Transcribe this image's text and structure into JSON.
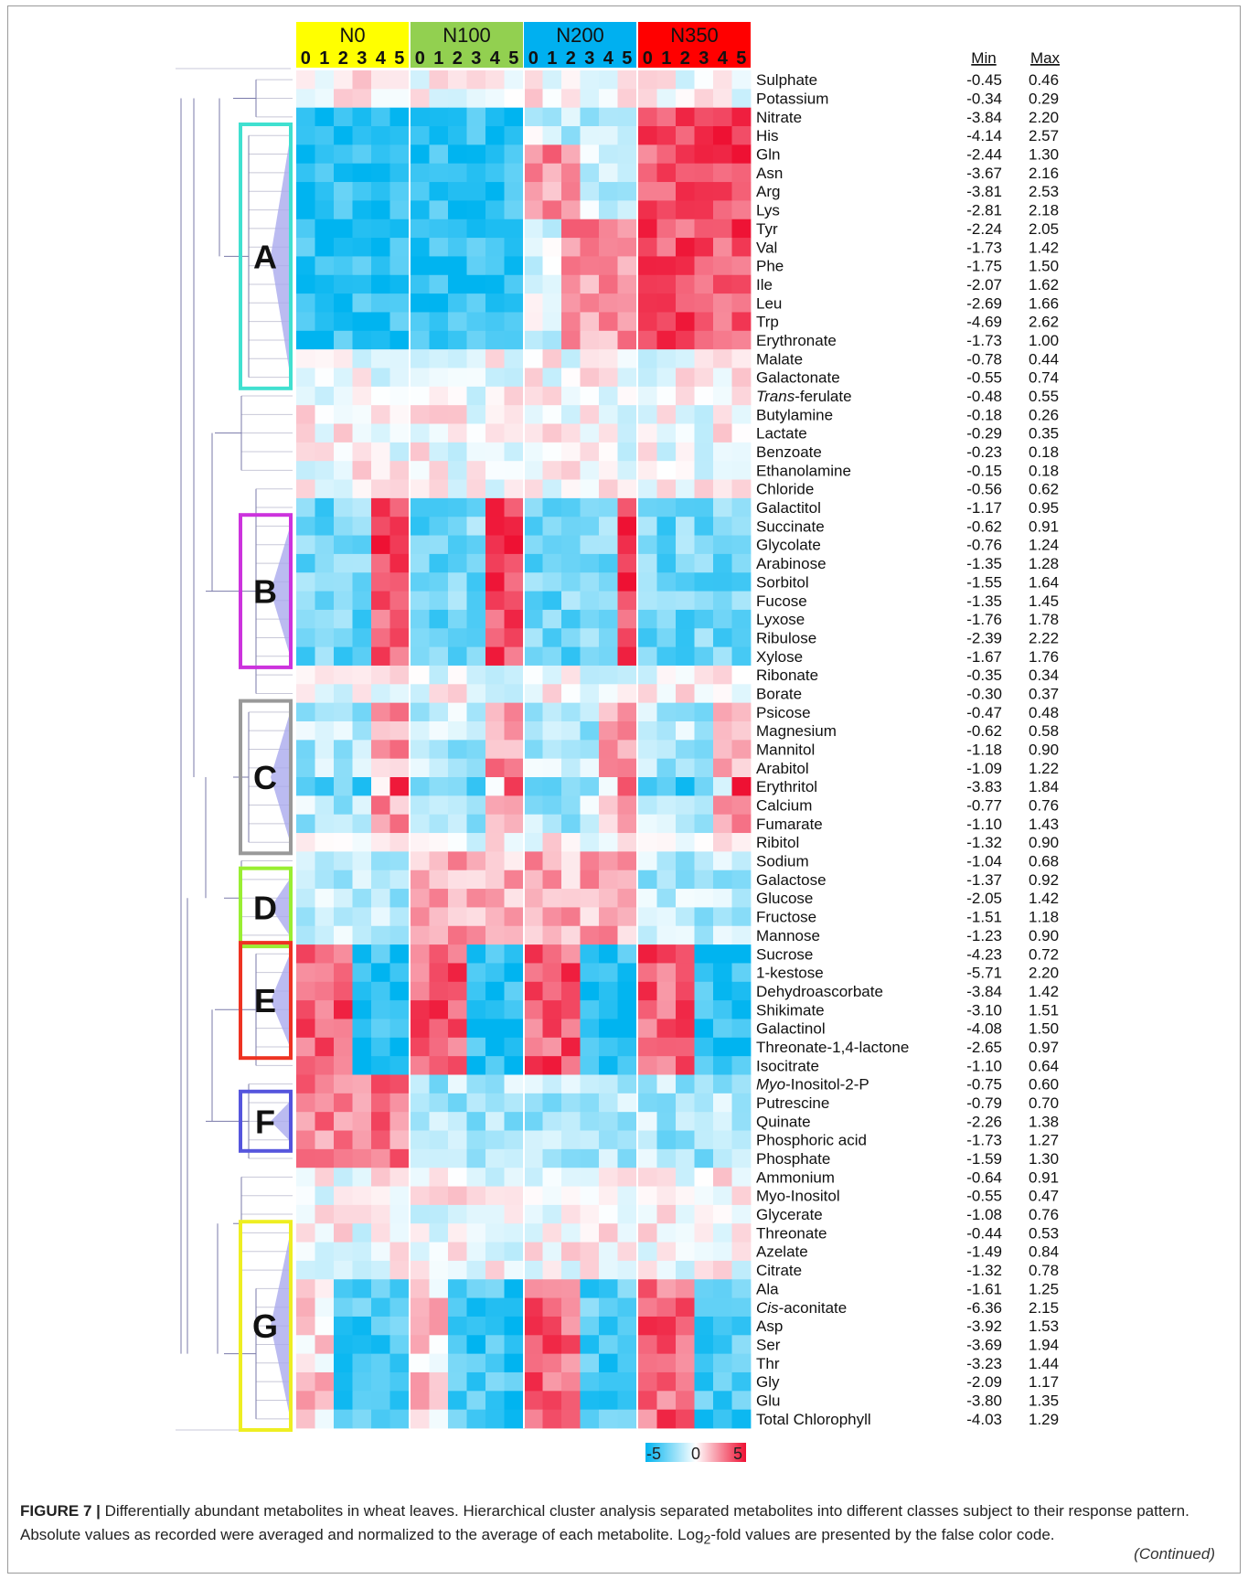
{
  "chart_data": {
    "type": "heatmap",
    "groups": [
      {
        "label": "N0",
        "color": "#ffff00"
      },
      {
        "label": "N100",
        "color": "#92d050"
      },
      {
        "label": "N200",
        "color": "#00b0f0"
      },
      {
        "label": "N350",
        "color": "#ff0000"
      }
    ],
    "timepoints": [
      "0",
      "1",
      "2",
      "3",
      "4",
      "5"
    ],
    "stats_headers": {
      "min": "Min",
      "max": "Max"
    },
    "metabolites": [
      {
        "name": "Sulphate",
        "min": "-0.45",
        "max": "0.46"
      },
      {
        "name": "Potassium",
        "min": "-0.34",
        "max": "0.29"
      },
      {
        "name": "Nitrate",
        "min": "-3.84",
        "max": "2.20"
      },
      {
        "name": "His",
        "min": "-4.14",
        "max": "2.57"
      },
      {
        "name": "Gln",
        "min": "-2.44",
        "max": "1.30"
      },
      {
        "name": "Asn",
        "min": "-3.67",
        "max": "2.16"
      },
      {
        "name": "Arg",
        "min": "-3.81",
        "max": "2.53"
      },
      {
        "name": "Lys",
        "min": "-2.81",
        "max": "2.18"
      },
      {
        "name": "Tyr",
        "min": "-2.24",
        "max": "2.05"
      },
      {
        "name": "Val",
        "min": "-1.73",
        "max": "1.42"
      },
      {
        "name": "Phe",
        "min": "-1.75",
        "max": "1.50"
      },
      {
        "name": "Ile",
        "min": "-2.07",
        "max": "1.62"
      },
      {
        "name": "Leu",
        "min": "-2.69",
        "max": "1.66"
      },
      {
        "name": "Trp",
        "min": "-4.69",
        "max": "2.62"
      },
      {
        "name": "Erythronate",
        "min": "-1.73",
        "max": "1.00"
      },
      {
        "name": "Malate",
        "min": "-0.78",
        "max": "0.44"
      },
      {
        "name": "Galactonate",
        "min": "-0.55",
        "max": "0.74"
      },
      {
        "name": "Trans-ferulate",
        "min": "-0.48",
        "max": "0.55",
        "italic": "Trans",
        "rest": "-ferulate"
      },
      {
        "name": "Butylamine",
        "min": "-0.18",
        "max": "0.26"
      },
      {
        "name": "Lactate",
        "min": "-0.29",
        "max": "0.35"
      },
      {
        "name": "Benzoate",
        "min": "-0.23",
        "max": "0.18"
      },
      {
        "name": "Ethanolamine",
        "min": "-0.15",
        "max": "0.18"
      },
      {
        "name": "Chloride",
        "min": "-0.56",
        "max": "0.62"
      },
      {
        "name": "Galactitol",
        "min": "-1.17",
        "max": "0.95"
      },
      {
        "name": "Succinate",
        "min": "-0.62",
        "max": "0.91"
      },
      {
        "name": "Glycolate",
        "min": "-0.76",
        "max": "1.24"
      },
      {
        "name": "Arabinose",
        "min": "-1.35",
        "max": "1.28"
      },
      {
        "name": "Sorbitol",
        "min": "-1.55",
        "max": "1.64"
      },
      {
        "name": "Fucose",
        "min": "-1.35",
        "max": "1.45"
      },
      {
        "name": "Lyxose",
        "min": "-1.76",
        "max": "1.78"
      },
      {
        "name": "Ribulose",
        "min": "-2.39",
        "max": "2.22"
      },
      {
        "name": "Xylose",
        "min": "-1.67",
        "max": "1.76"
      },
      {
        "name": "Ribonate",
        "min": "-0.35",
        "max": "0.34"
      },
      {
        "name": "Borate",
        "min": "-0.30",
        "max": "0.37"
      },
      {
        "name": "Psicose",
        "min": "-0.47",
        "max": "0.48"
      },
      {
        "name": "Magnesium",
        "min": "-0.62",
        "max": "0.58"
      },
      {
        "name": "Mannitol",
        "min": "-1.18",
        "max": "0.90"
      },
      {
        "name": "Arabitol",
        "min": "-1.09",
        "max": "1.22"
      },
      {
        "name": "Erythritol",
        "min": "-3.83",
        "max": "1.84"
      },
      {
        "name": "Calcium",
        "min": "-0.77",
        "max": "0.76"
      },
      {
        "name": "Fumarate",
        "min": "-1.10",
        "max": "1.43"
      },
      {
        "name": "Ribitol",
        "min": "-1.32",
        "max": "0.90"
      },
      {
        "name": "Sodium",
        "min": "-1.04",
        "max": "0.68"
      },
      {
        "name": "Galactose",
        "min": "-1.37",
        "max": "0.92"
      },
      {
        "name": "Glucose",
        "min": "-2.05",
        "max": "1.42"
      },
      {
        "name": "Fructose",
        "min": "-1.51",
        "max": "1.18"
      },
      {
        "name": "Mannose",
        "min": "-1.23",
        "max": "0.90"
      },
      {
        "name": "Sucrose",
        "min": "-4.23",
        "max": "0.72"
      },
      {
        "name": "1-kestose",
        "min": "-5.71",
        "max": "2.20"
      },
      {
        "name": "Dehydroascorbate",
        "min": "-3.84",
        "max": "1.42"
      },
      {
        "name": "Shikimate",
        "min": "-3.10",
        "max": "1.51"
      },
      {
        "name": "Galactinol",
        "min": "-4.08",
        "max": "1.50"
      },
      {
        "name": "Threonate-1,4-lactone",
        "min": "-2.65",
        "max": "0.97"
      },
      {
        "name": "Isocitrate",
        "min": "-1.10",
        "max": "0.64"
      },
      {
        "name": "Myo-Inositol-2-P",
        "min": "-0.75",
        "max": "0.60",
        "italic": "Myo",
        "rest": "-Inositol-2-P"
      },
      {
        "name": "Putrescine",
        "min": "-0.79",
        "max": "0.70"
      },
      {
        "name": "Quinate",
        "min": "-2.26",
        "max": "1.38"
      },
      {
        "name": "Phosphoric acid",
        "min": "-1.73",
        "max": "1.27"
      },
      {
        "name": "Phosphate",
        "min": "-1.59",
        "max": "1.30"
      },
      {
        "name": "Ammonium",
        "min": "-0.64",
        "max": "0.91"
      },
      {
        "name": "Myo-Inositol",
        "min": "-0.55",
        "max": "0.47"
      },
      {
        "name": "Glycerate",
        "min": "-1.08",
        "max": "0.76"
      },
      {
        "name": "Threonate",
        "min": "-0.44",
        "max": "0.53"
      },
      {
        "name": "Azelate",
        "min": "-1.49",
        "max": "0.84"
      },
      {
        "name": "Citrate",
        "min": "-1.32",
        "max": "0.78"
      },
      {
        "name": "Ala",
        "min": "-1.61",
        "max": "1.25"
      },
      {
        "name": "Cis-aconitate",
        "min": "-6.36",
        "max": "2.15",
        "italic": "Cis",
        "rest": "-aconitate"
      },
      {
        "name": "Asp",
        "min": "-3.92",
        "max": "1.53"
      },
      {
        "name": "Ser",
        "min": "-3.69",
        "max": "1.94"
      },
      {
        "name": "Thr",
        "min": "-3.23",
        "max": "1.44"
      },
      {
        "name": "Gly",
        "min": "-2.09",
        "max": "1.17"
      },
      {
        "name": "Glu",
        "min": "-3.80",
        "max": "1.35"
      },
      {
        "name": "Total Chlorophyll",
        "min": "-4.03",
        "max": "1.29"
      }
    ],
    "clusters": [
      {
        "label": "A",
        "first": 3,
        "last": 16,
        "color": "#40e0d0"
      },
      {
        "label": "B",
        "first": 24,
        "last": 31,
        "color": "#cc33dd"
      },
      {
        "label": "C",
        "first": 34,
        "last": 41,
        "color": "#999999"
      },
      {
        "label": "D",
        "first": 43,
        "last": 46,
        "color": "#99ee33"
      },
      {
        "label": "E",
        "first": 47,
        "last": 52,
        "color": "#ee3322"
      },
      {
        "label": "F",
        "first": 55,
        "last": 57,
        "color": "#5555dd"
      },
      {
        "label": "G",
        "first": 62,
        "last": 72,
        "color": "#eeee22"
      }
    ],
    "color_scale": {
      "min_label": "-5",
      "mid_label": "0",
      "max_label": "5",
      "low": "#00b4f0",
      "mid": "#ffffff",
      "high": "#ee1133"
    }
  },
  "caption": {
    "label": "FIGURE 7 |",
    "text_1": " Differentially abundant metabolites in wheat leaves. Hierarchical cluster analysis separated metabolites into different classes subject to their response pattern. Absolute values as recorded were averaged and normalized to the average of each metabolite. Log",
    "sub": "2",
    "text_2": "-fold values are presented by the false color code.",
    "continued": "(Continued)"
  }
}
